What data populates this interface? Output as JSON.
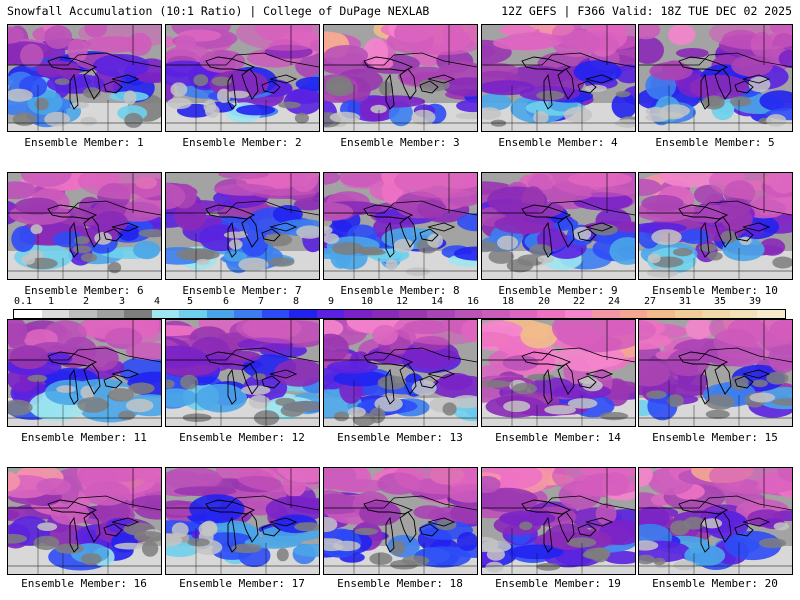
{
  "header": {
    "left": "Snowfall Accumulation (10:1 Ratio) | College of DuPage NEXLAB",
    "right": "12Z GEFS | F366 Valid: 18Z TUE DEC 02 2025"
  },
  "scale": {
    "ticks": [
      "0.1",
      "1",
      "2",
      "3",
      "4",
      "5",
      "6",
      "7",
      "8",
      "9",
      "10",
      "12",
      "14",
      "16",
      "18",
      "20",
      "22",
      "24",
      "27",
      "31",
      "35",
      "39"
    ],
    "colors": [
      "#ffffff",
      "#dcdcdc",
      "#bdbdbd",
      "#a0a0a0",
      "#7e7e7e",
      "#9fe6f0",
      "#6fd0ec",
      "#4aa6e8",
      "#3c7ef0",
      "#2e4cf6",
      "#2222f0",
      "#5a22e0",
      "#7a22c8",
      "#8a2ab8",
      "#9a36b0",
      "#aa44b4",
      "#ba52b8",
      "#cc5cbc",
      "#dc66c0",
      "#ee72c4",
      "#f484cc",
      "#f496a8",
      "#f4a892",
      "#f2bb8c",
      "#f0cc96",
      "#f0d8a8",
      "#f2e2ba",
      "#f4eccc"
    ]
  },
  "members": [
    {
      "label": "Ensemble Member: 1",
      "intensity": 0.35
    },
    {
      "label": "Ensemble Member: 2",
      "intensity": 0.55
    },
    {
      "label": "Ensemble Member: 3",
      "intensity": 0.85
    },
    {
      "label": "Ensemble Member: 4",
      "intensity": 0.55
    },
    {
      "label": "Ensemble Member: 5",
      "intensity": 0.5
    },
    {
      "label": "Ensemble Member: 6",
      "intensity": 0.6
    },
    {
      "label": "Ensemble Member: 7",
      "intensity": 0.35
    },
    {
      "label": "Ensemble Member: 8",
      "intensity": 0.5
    },
    {
      "label": "Ensemble Member: 9",
      "intensity": 0.45
    },
    {
      "label": "Ensemble Member: 10",
      "intensity": 0.65
    },
    {
      "label": "Ensemble Member: 11",
      "intensity": 0.45
    },
    {
      "label": "Ensemble Member: 12",
      "intensity": 0.4
    },
    {
      "label": "Ensemble Member: 13",
      "intensity": 0.5
    },
    {
      "label": "Ensemble Member: 14",
      "intensity": 0.95
    },
    {
      "label": "Ensemble Member: 15",
      "intensity": 0.7
    },
    {
      "label": "Ensemble Member: 16",
      "intensity": 0.65
    },
    {
      "label": "Ensemble Member: 17",
      "intensity": 0.45
    },
    {
      "label": "Ensemble Member: 18",
      "intensity": 0.6
    },
    {
      "label": "Ensemble Member: 19",
      "intensity": 0.7
    },
    {
      "label": "Ensemble Member: 20",
      "intensity": 0.6
    }
  ]
}
